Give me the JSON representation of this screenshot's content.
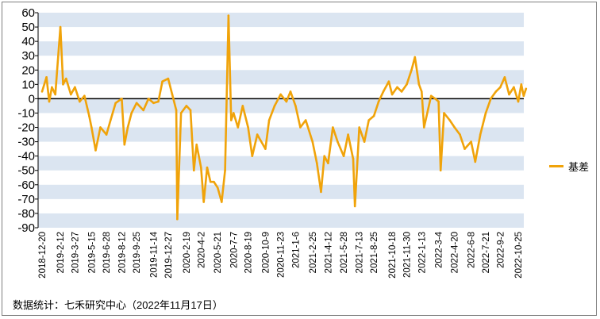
{
  "chart_data": {
    "type": "line",
    "title": "",
    "xlabel": "",
    "ylabel": "",
    "ylim": [
      -90,
      60
    ],
    "yticks": [
      60,
      50,
      40,
      30,
      20,
      10,
      0,
      -10,
      -20,
      -30,
      -40,
      -50,
      -60,
      -70,
      -80,
      -90
    ],
    "x_tick_labels": [
      "2018-12-20",
      "2019-2-12",
      "2019-3-27",
      "2019-5-15",
      "2019-6-28",
      "2019-8-12",
      "2019-9-25",
      "2019-11-14",
      "2019-12-27",
      "2020-2-19",
      "2020-4-2",
      "2020-5-21",
      "2020-7-7",
      "2020-8-19",
      "2020-10-9",
      "2020-11-23",
      "2021-1-6",
      "2021-2-25",
      "2021-4-12",
      "2021-5-28",
      "2021-7-13",
      "2021-8-25",
      "2021-10-18",
      "2021-11-30",
      "2022-1-13",
      "2022-3-4",
      "2022-4-20",
      "2022-6-8",
      "2022-7-21",
      "2022-9-2",
      "2022-10-25"
    ],
    "grid": "horizontal-bands",
    "legend_position": "right",
    "series": [
      {
        "name": "基差",
        "color": "#f0a30a",
        "values": [
          {
            "x": "2018-12-20",
            "y": 5
          },
          {
            "x": "2019-1-2",
            "y": 15
          },
          {
            "x": "2019-1-10",
            "y": -2
          },
          {
            "x": "2019-1-18",
            "y": 8
          },
          {
            "x": "2019-1-28",
            "y": 3
          },
          {
            "x": "2019-2-12",
            "y": 50
          },
          {
            "x": "2019-2-20",
            "y": 10
          },
          {
            "x": "2019-3-1",
            "y": 14
          },
          {
            "x": "2019-3-15",
            "y": 3
          },
          {
            "x": "2019-3-27",
            "y": 8
          },
          {
            "x": "2019-4-10",
            "y": -2
          },
          {
            "x": "2019-4-24",
            "y": 2
          },
          {
            "x": "2019-5-8",
            "y": -12
          },
          {
            "x": "2019-5-15",
            "y": -20
          },
          {
            "x": "2019-5-27",
            "y": -36
          },
          {
            "x": "2019-6-10",
            "y": -20
          },
          {
            "x": "2019-6-28",
            "y": -25
          },
          {
            "x": "2019-7-10",
            "y": -15
          },
          {
            "x": "2019-7-25",
            "y": -3
          },
          {
            "x": "2019-8-12",
            "y": 0
          },
          {
            "x": "2019-8-20",
            "y": -32
          },
          {
            "x": "2019-8-30",
            "y": -20
          },
          {
            "x": "2019-9-10",
            "y": -10
          },
          {
            "x": "2019-9-25",
            "y": -3
          },
          {
            "x": "2019-10-15",
            "y": -8
          },
          {
            "x": "2019-10-30",
            "y": 0
          },
          {
            "x": "2019-11-14",
            "y": -3
          },
          {
            "x": "2019-11-28",
            "y": -2
          },
          {
            "x": "2019-12-10",
            "y": 12
          },
          {
            "x": "2019-12-27",
            "y": 14
          },
          {
            "x": "2020-1-8",
            "y": 3
          },
          {
            "x": "2020-1-20",
            "y": -8
          },
          {
            "x": "2020-1-23",
            "y": -84
          },
          {
            "x": "2020-2-3",
            "y": -10
          },
          {
            "x": "2020-2-19",
            "y": -5
          },
          {
            "x": "2020-3-2",
            "y": -8
          },
          {
            "x": "2020-3-12",
            "y": -50
          },
          {
            "x": "2020-3-20",
            "y": -32
          },
          {
            "x": "2020-4-2",
            "y": -48
          },
          {
            "x": "2020-4-10",
            "y": -72
          },
          {
            "x": "2020-4-20",
            "y": -48
          },
          {
            "x": "2020-4-30",
            "y": -58
          },
          {
            "x": "2020-5-10",
            "y": -58
          },
          {
            "x": "2020-5-21",
            "y": -62
          },
          {
            "x": "2020-6-2",
            "y": -72
          },
          {
            "x": "2020-6-12",
            "y": -50
          },
          {
            "x": "2020-6-22",
            "y": 58
          },
          {
            "x": "2020-6-30",
            "y": -15
          },
          {
            "x": "2020-7-7",
            "y": -10
          },
          {
            "x": "2020-7-20",
            "y": -20
          },
          {
            "x": "2020-8-3",
            "y": -5
          },
          {
            "x": "2020-8-19",
            "y": -20
          },
          {
            "x": "2020-8-31",
            "y": -40
          },
          {
            "x": "2020-9-15",
            "y": -25
          },
          {
            "x": "2020-10-9",
            "y": -35
          },
          {
            "x": "2020-10-20",
            "y": -15
          },
          {
            "x": "2020-11-5",
            "y": -5
          },
          {
            "x": "2020-11-23",
            "y": 3
          },
          {
            "x": "2020-12-10",
            "y": -2
          },
          {
            "x": "2020-12-22",
            "y": 5
          },
          {
            "x": "2021-1-6",
            "y": -5
          },
          {
            "x": "2021-1-20",
            "y": -20
          },
          {
            "x": "2021-2-5",
            "y": -15
          },
          {
            "x": "2021-2-25",
            "y": -30
          },
          {
            "x": "2021-3-10",
            "y": -45
          },
          {
            "x": "2021-3-22",
            "y": -65
          },
          {
            "x": "2021-4-1",
            "y": -40
          },
          {
            "x": "2021-4-12",
            "y": -45
          },
          {
            "x": "2021-4-26",
            "y": -20
          },
          {
            "x": "2021-5-10",
            "y": -30
          },
          {
            "x": "2021-5-28",
            "y": -40
          },
          {
            "x": "2021-6-10",
            "y": -25
          },
          {
            "x": "2021-6-25",
            "y": -42
          },
          {
            "x": "2021-6-30",
            "y": -75
          },
          {
            "x": "2021-7-13",
            "y": -20
          },
          {
            "x": "2021-7-28",
            "y": -30
          },
          {
            "x": "2021-8-10",
            "y": -15
          },
          {
            "x": "2021-8-25",
            "y": -12
          },
          {
            "x": "2021-9-8",
            "y": -2
          },
          {
            "x": "2021-9-22",
            "y": 5
          },
          {
            "x": "2021-10-8",
            "y": 12
          },
          {
            "x": "2021-10-18",
            "y": 3
          },
          {
            "x": "2021-11-2",
            "y": 8
          },
          {
            "x": "2021-11-15",
            "y": 5
          },
          {
            "x": "2021-11-30",
            "y": 10
          },
          {
            "x": "2021-12-14",
            "y": 20
          },
          {
            "x": "2021-12-24",
            "y": 29
          },
          {
            "x": "2022-1-5",
            "y": 10
          },
          {
            "x": "2022-1-13",
            "y": 5
          },
          {
            "x": "2022-1-20",
            "y": -20
          },
          {
            "x": "2022-2-10",
            "y": 2
          },
          {
            "x": "2022-2-22",
            "y": 0
          },
          {
            "x": "2022-3-4",
            "y": -2
          },
          {
            "x": "2022-3-10",
            "y": -50
          },
          {
            "x": "2022-3-20",
            "y": -10
          },
          {
            "x": "2022-4-6",
            "y": -15
          },
          {
            "x": "2022-4-20",
            "y": -20
          },
          {
            "x": "2022-5-6",
            "y": -25
          },
          {
            "x": "2022-5-20",
            "y": -35
          },
          {
            "x": "2022-6-8",
            "y": -30
          },
          {
            "x": "2022-6-20",
            "y": -44
          },
          {
            "x": "2022-7-5",
            "y": -25
          },
          {
            "x": "2022-7-21",
            "y": -10
          },
          {
            "x": "2022-8-5",
            "y": 0
          },
          {
            "x": "2022-8-20",
            "y": 5
          },
          {
            "x": "2022-9-2",
            "y": 8
          },
          {
            "x": "2022-9-15",
            "y": 15
          },
          {
            "x": "2022-9-28",
            "y": 3
          },
          {
            "x": "2022-10-12",
            "y": 8
          },
          {
            "x": "2022-10-25",
            "y": -2
          },
          {
            "x": "2022-11-3",
            "y": 10
          },
          {
            "x": "2022-11-10",
            "y": 2
          },
          {
            "x": "2022-11-17",
            "y": 7
          }
        ]
      }
    ]
  },
  "footnote": "数据统计：七禾研究中心（2022年11月17日）"
}
